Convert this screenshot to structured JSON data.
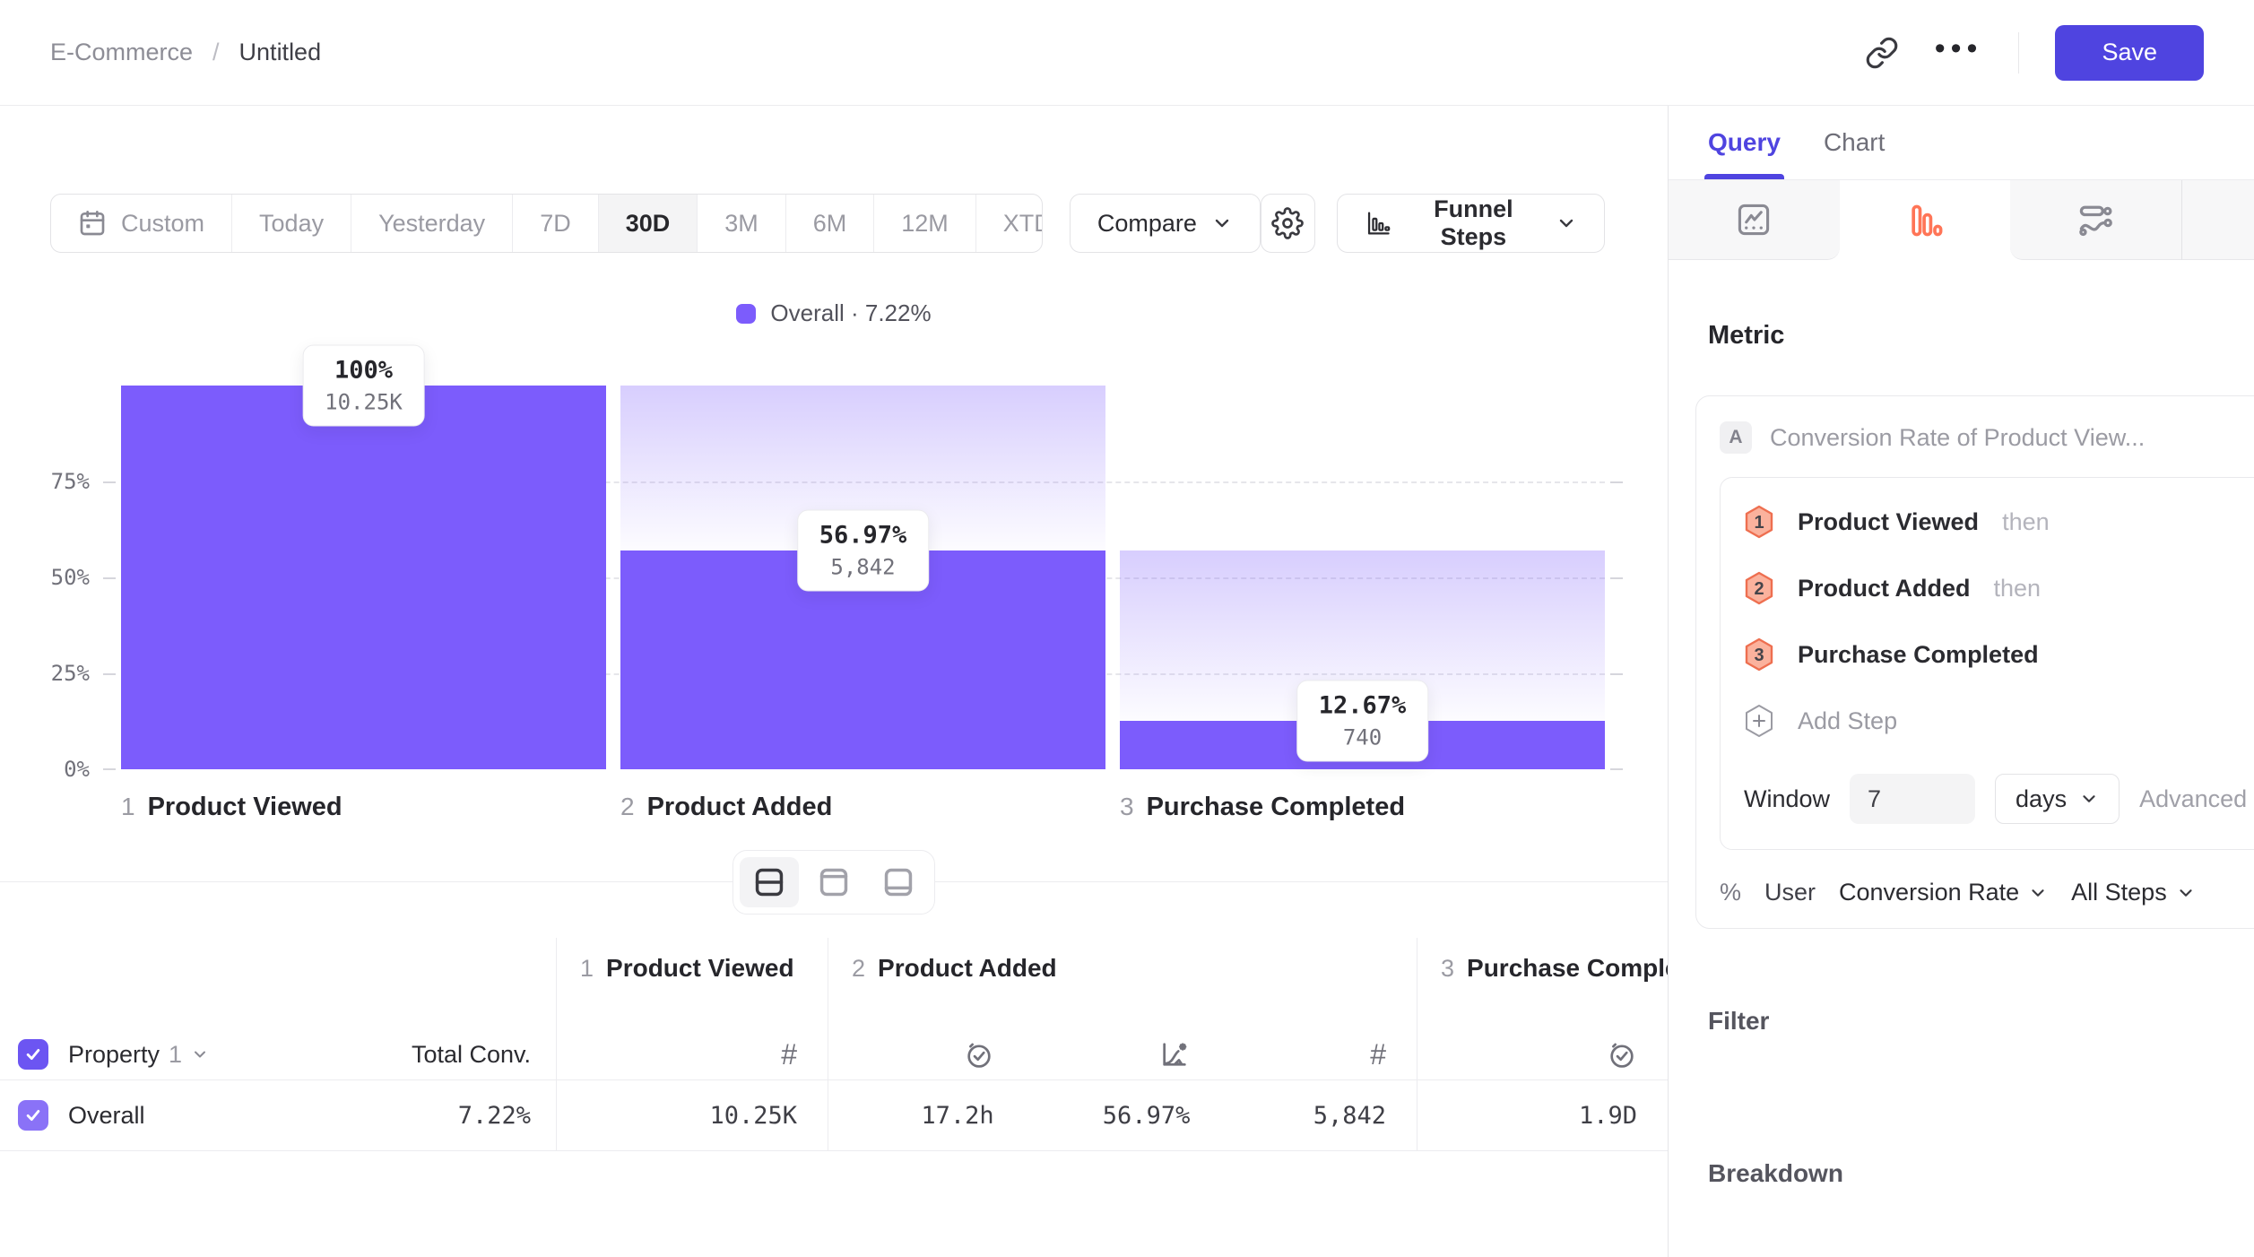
{
  "header": {
    "breadcrumb_parent": "E-Commerce",
    "breadcrumb_separator": "/",
    "breadcrumb_current": "Untitled",
    "more_label": "•••",
    "save_label": "Save",
    "icons": [
      "link-icon",
      "more-icon"
    ]
  },
  "toolbar": {
    "ranges": [
      "Custom",
      "Today",
      "Yesterday",
      "7D",
      "30D",
      "3M",
      "6M",
      "12M",
      "XTD"
    ],
    "selected_range": "30D",
    "compare_label": "Compare",
    "view_label": "Funnel Steps",
    "icons": [
      "calendar-icon",
      "gear-icon",
      "funnel-chart-icon"
    ]
  },
  "chart_data": {
    "type": "bar",
    "legend_label": "Overall · 7.22%",
    "categories": [
      "Product Viewed",
      "Product Added",
      "Purchase Completed"
    ],
    "category_numbers": [
      "1",
      "2",
      "3"
    ],
    "series": [
      {
        "name": "Overall",
        "conversion_pct": [
          100,
          56.97,
          12.67
        ],
        "pct_labels": [
          "100%",
          "56.97%",
          "12.67%"
        ],
        "count_labels": [
          "10.25K",
          "5,842",
          "740"
        ],
        "counts": [
          10250,
          5842,
          740
        ]
      }
    ],
    "overall_conversion": "7.22%",
    "y_ticks": [
      "75%",
      "50%",
      "25%",
      "0%"
    ],
    "ylim": [
      0,
      100
    ],
    "gridlines_pct": [
      75,
      50,
      25
    ],
    "grid_style": "dashed horizontal",
    "legend_position": "top-center",
    "accent_color": "#7C5CFC"
  },
  "table": {
    "property_label": "Property",
    "property_index": "1",
    "total_conv_header": "Total Conv.",
    "columns": [
      {
        "num": "1",
        "title": "Product Viewed",
        "icons": [
          "count-icon"
        ]
      },
      {
        "num": "2",
        "title": "Product Added",
        "icons": [
          "avg-time-icon",
          "conversion-rate-icon",
          "count-icon"
        ]
      },
      {
        "num": "3",
        "title": "Purchase Completed",
        "icons": [
          "avg-time-icon"
        ]
      }
    ],
    "row": {
      "name": "Overall",
      "total_conv": "7.22%",
      "cells": [
        [
          "10.25K"
        ],
        [
          "17.2h",
          "56.97%",
          "5,842"
        ],
        [
          "1.9D"
        ]
      ]
    }
  },
  "sidebar": {
    "tabs": [
      "Query",
      "Chart"
    ],
    "active_tab": "Query",
    "chart_type_icons": [
      "insights-icon",
      "funnel-icon",
      "flows-icon",
      "more-charts-icon"
    ],
    "selected_chart_type": "funnel-icon",
    "funnel_icon_color": "#FF7557",
    "metric": {
      "heading": "Metric",
      "series_badge": "A",
      "series_title": "Conversion Rate of Product View...",
      "steps": [
        {
          "num": "1",
          "name": "Product Viewed",
          "suffix": "then"
        },
        {
          "num": "2",
          "name": "Product Added",
          "suffix": "then"
        },
        {
          "num": "3",
          "name": "Purchase Completed",
          "suffix": ""
        }
      ],
      "add_step_label": "Add Step",
      "window_label": "Window",
      "window_value": "7",
      "window_unit": "days",
      "advanced_label": "Advanced",
      "measure_symbol": "%",
      "measure_entity": "User",
      "measure_type": "Conversion Rate",
      "measure_scope": "All Steps"
    },
    "filter": {
      "label": "Filter",
      "add_label": "+"
    },
    "breakdown": {
      "label": "Breakdown",
      "add_label": "+"
    }
  }
}
